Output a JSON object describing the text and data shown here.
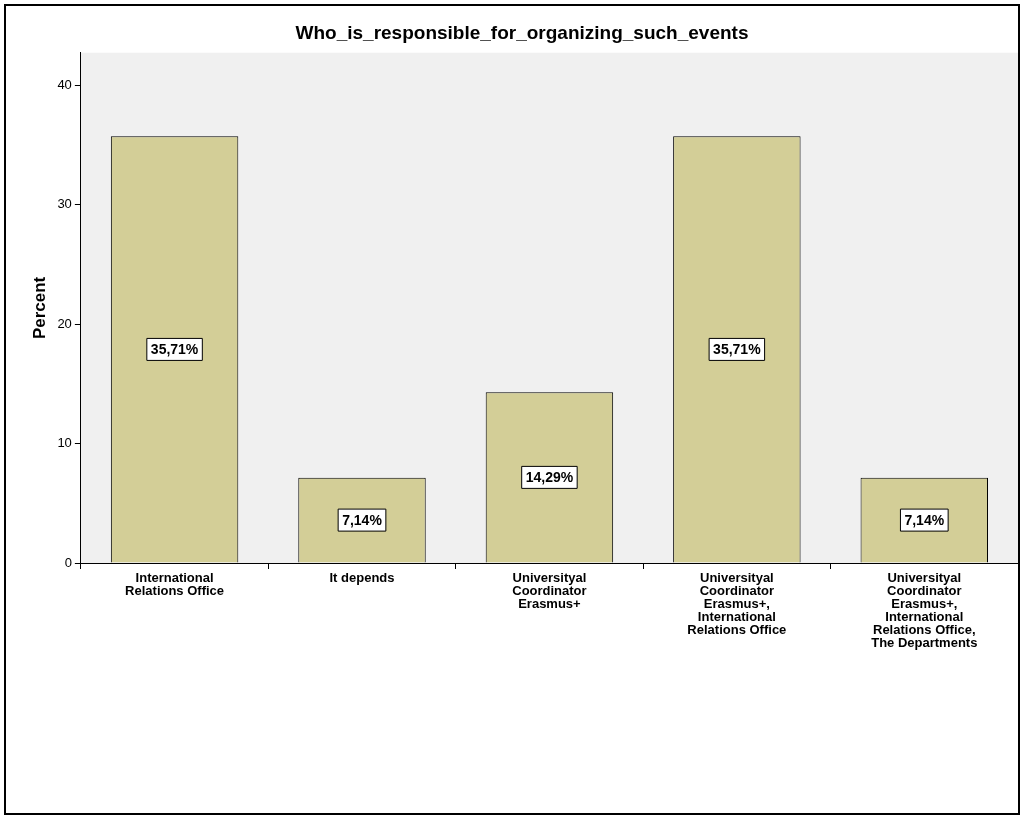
{
  "chart_data": {
    "type": "bar",
    "title": "Who_is_responsible_for_organizing_such_events",
    "ylabel": "Percent",
    "categories": [
      "International Relations Office",
      "It depends",
      "Universityal Coordinator Erasmus+",
      "Universityal Coordinator Erasmus+, International Relations Office",
      "Universityal Coordinator Erasmus+, International Relations Office, The Departments"
    ],
    "values": [
      35.71,
      7.14,
      14.29,
      35.71,
      7.14
    ],
    "value_labels": [
      "35,71%",
      "7,14%",
      "14,29%",
      "35,71%",
      "7,14%"
    ],
    "color": "#d3ce97",
    "ylim": [
      0,
      42.7
    ],
    "yticks": [
      0,
      10,
      20,
      30,
      40
    ]
  }
}
